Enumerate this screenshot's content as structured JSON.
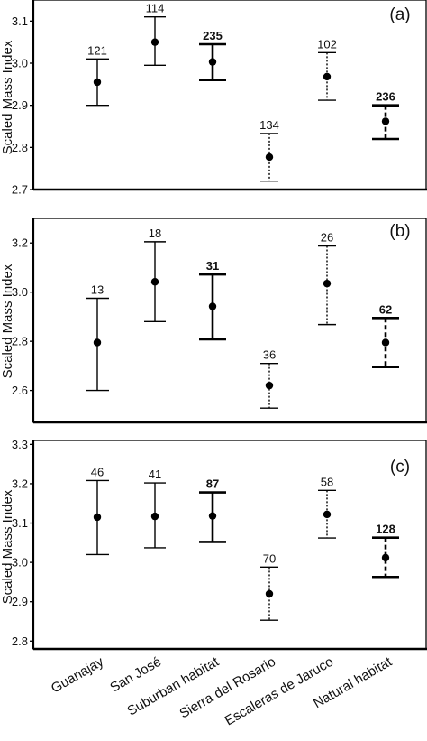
{
  "chart_data": {
    "type": "scatter",
    "categories": [
      "Guanajay",
      "San José",
      "Suburban habitat",
      "Sierra del Rosario",
      "Escaleras de Jaruco",
      "Natural habitat"
    ],
    "line_styles": [
      "solid",
      "solid",
      "solid-bold",
      "dotted",
      "dotted",
      "dashed-bold"
    ],
    "panels": [
      {
        "label": "(a)",
        "ylabel": "Scaled Mass Index",
        "ylim": [
          2.7,
          3.15
        ],
        "yticks": [
          "2.7",
          "2.8",
          "2.9",
          "3.0",
          "3.1"
        ],
        "means": [
          2.955,
          3.05,
          3.003,
          2.777,
          2.968,
          2.862
        ],
        "lower": [
          2.9,
          2.995,
          2.96,
          2.72,
          2.912,
          2.82
        ],
        "upper": [
          3.01,
          3.11,
          3.045,
          2.833,
          3.025,
          2.9
        ],
        "n": [
          "121",
          "114",
          "235",
          "134",
          "102",
          "236"
        ]
      },
      {
        "label": "(b)",
        "ylabel": "Scaled Mass Index",
        "ylim": [
          2.47,
          3.3
        ],
        "yticks": [
          "2.6",
          "2.8",
          "3.0",
          "3.2"
        ],
        "means": [
          2.795,
          3.042,
          2.942,
          2.62,
          3.035,
          2.795
        ],
        "lower": [
          2.6,
          2.88,
          2.808,
          2.528,
          2.868,
          2.695
        ],
        "upper": [
          2.975,
          3.205,
          3.072,
          2.71,
          3.188,
          2.895
        ],
        "n": [
          "13",
          "18",
          "31",
          "36",
          "26",
          "62"
        ]
      },
      {
        "label": "(c)",
        "ylabel": "Scaled Mass Index",
        "ylim": [
          2.78,
          3.31
        ],
        "yticks": [
          "2.8",
          "2.9",
          "3.0",
          "3.1",
          "3.2",
          "3.3"
        ],
        "means": [
          3.115,
          3.117,
          3.118,
          2.92,
          3.122,
          3.012
        ],
        "lower": [
          3.02,
          3.037,
          3.052,
          2.853,
          3.062,
          2.963
        ],
        "upper": [
          3.208,
          3.202,
          3.178,
          2.988,
          3.183,
          3.063
        ],
        "n": [
          "46",
          "41",
          "87",
          "70",
          "58",
          "128"
        ]
      }
    ]
  }
}
